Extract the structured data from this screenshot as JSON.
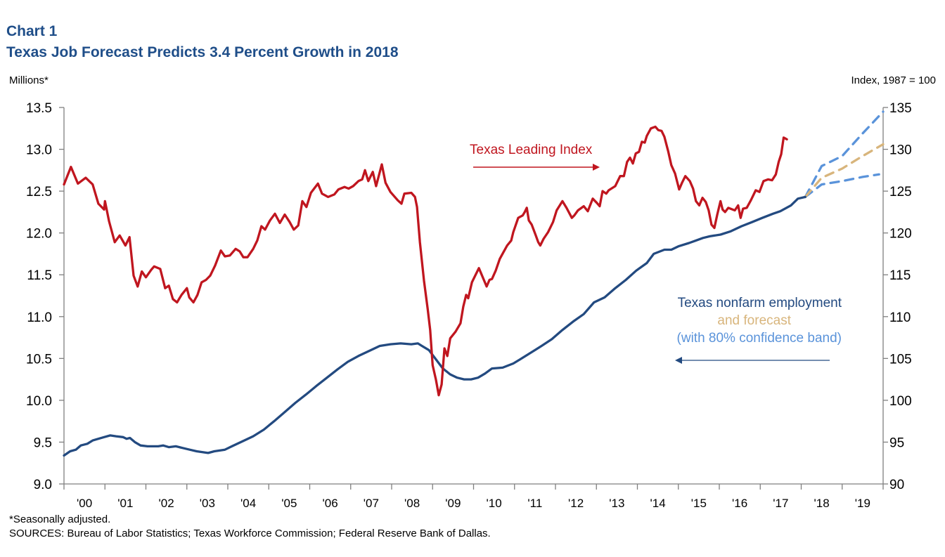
{
  "header": {
    "chart_number": "Chart 1",
    "title": "Texas Job Forecast Predicts 3.4 Percent Growth in 2018"
  },
  "footnotes": {
    "note": "*Seasonally adjusted.",
    "sources": "SOURCES: Bureau of Labor Statistics; Texas Workforce Commission; Federal Reserve Bank of Dallas."
  },
  "chart_data": {
    "type": "line",
    "title": "Texas Job Forecast Predicts 3.4 Percent Growth in 2018",
    "xlabel": "",
    "ylabel_left": "Millions*",
    "ylabel_right": "Index, 1987 = 100",
    "xlim": [
      2000,
      2020
    ],
    "ylim_left": [
      9.0,
      13.5
    ],
    "ylim_right": [
      90,
      135
    ],
    "yticks_left": [
      "9.0",
      "9.5",
      "10.0",
      "10.5",
      "11.0",
      "11.5",
      "12.0",
      "12.5",
      "13.0",
      "13.5"
    ],
    "yticks_right": [
      "90",
      "95",
      "100",
      "105",
      "110",
      "115",
      "120",
      "125",
      "130",
      "135"
    ],
    "xtick_labels": [
      "'00",
      "'01",
      "'02",
      "'03",
      "'04",
      "'05",
      "'06",
      "'07",
      "'08",
      "'09",
      "'10",
      "'11",
      "'12",
      "'13",
      "'14",
      "'15",
      "'16",
      "'17",
      "'18",
      "'19"
    ],
    "grid": false,
    "annotations": {
      "leading_index": "Texas Leading Index",
      "employment": "Texas nonfarm employment",
      "forecast": "and forecast",
      "band": "(with 80% confidence band)"
    },
    "colors": {
      "leading_index": "#C0161F",
      "employment": "#234A80",
      "forecast": "#D8B57C",
      "band": "#5A93DA",
      "title": "#1F4E89"
    },
    "series": [
      {
        "name": "Texas Leading Index",
        "axis": "right",
        "x": [
          2000.0,
          2000.17,
          2000.34,
          2000.53,
          2000.7,
          2000.84,
          2000.98,
          2001.0,
          2001.1,
          2001.24,
          2001.36,
          2001.5,
          2001.6,
          2001.7,
          2001.8,
          2001.9,
          2002.0,
          2002.13,
          2002.2,
          2002.35,
          2002.47,
          2002.56,
          2002.66,
          2002.76,
          2002.87,
          2003.0,
          2003.06,
          2003.16,
          2003.26,
          2003.36,
          2003.47,
          2003.57,
          2003.69,
          2003.83,
          2003.93,
          2004.05,
          2004.19,
          2004.29,
          2004.38,
          2004.48,
          2004.62,
          2004.72,
          2004.82,
          2004.91,
          2005.03,
          2005.15,
          2005.27,
          2005.39,
          2005.51,
          2005.61,
          2005.72,
          2005.82,
          2005.92,
          2006.03,
          2006.2,
          2006.3,
          2006.45,
          2006.6,
          2006.7,
          2006.85,
          2006.95,
          2007.06,
          2007.19,
          2007.28,
          2007.35,
          2007.43,
          2007.54,
          2007.62,
          2007.76,
          2007.85,
          2007.97,
          2008.15,
          2008.24,
          2008.31,
          2008.48,
          2008.57,
          2008.62,
          2008.69,
          2008.79,
          2008.88,
          2008.94,
          2009.0,
          2009.08,
          2009.15,
          2009.22,
          2009.29,
          2009.36,
          2009.43,
          2009.56,
          2009.68,
          2009.75,
          2009.82,
          2009.87,
          2009.96,
          2010.13,
          2010.25,
          2010.32,
          2010.39,
          2010.45,
          2010.54,
          2010.64,
          2010.73,
          2010.82,
          2010.92,
          2010.97,
          2011.09,
          2011.2,
          2011.25,
          2011.3,
          2011.35,
          2011.42,
          2011.52,
          2011.58,
          2011.63,
          2011.71,
          2011.82,
          2011.94,
          2012.03,
          2012.17,
          2012.27,
          2012.4,
          2012.46,
          2012.55,
          2012.69,
          2012.79,
          2012.91,
          2013.01,
          2013.08,
          2013.15,
          2013.24,
          2013.3,
          2013.46,
          2013.58,
          2013.67,
          2013.75,
          2013.82,
          2013.89,
          2013.96,
          2014.04,
          2014.11,
          2014.18,
          2014.23,
          2014.33,
          2014.44,
          2014.51,
          2014.59,
          2014.66,
          2014.75,
          2014.83,
          2014.92,
          2015.02,
          2015.09,
          2015.17,
          2015.28,
          2015.36,
          2015.43,
          2015.51,
          2015.59,
          2015.67,
          2015.74,
          2015.81,
          2015.88,
          2015.95,
          2016.03,
          2016.08,
          2016.14,
          2016.22,
          2016.38,
          2016.46,
          2016.52,
          2016.58,
          2016.67,
          2016.77,
          2016.89,
          2016.98,
          2017.08,
          2017.19,
          2017.29,
          2017.38,
          2017.45,
          2017.51,
          2017.57,
          2017.65
        ],
        "values": [
          125.8,
          127.9,
          125.9,
          126.6,
          125.8,
          123.5,
          122.8,
          123.8,
          121.4,
          118.9,
          119.7,
          118.5,
          119.5,
          114.9,
          113.6,
          115.4,
          114.7,
          115.6,
          116.0,
          115.7,
          113.4,
          113.7,
          112.1,
          111.7,
          112.6,
          113.4,
          112.3,
          111.7,
          112.6,
          114.1,
          114.4,
          114.9,
          116.1,
          117.9,
          117.2,
          117.3,
          118.1,
          117.8,
          117.1,
          117.1,
          118.1,
          119.1,
          120.8,
          120.4,
          121.5,
          122.3,
          121.2,
          122.2,
          121.3,
          120.4,
          120.9,
          123.8,
          123.1,
          124.8,
          125.9,
          124.7,
          124.3,
          124.6,
          125.2,
          125.5,
          125.3,
          125.6,
          126.2,
          126.4,
          127.5,
          126.2,
          127.3,
          125.6,
          128.2,
          126.0,
          124.9,
          123.9,
          123.5,
          124.7,
          124.8,
          124.3,
          123.1,
          118.9,
          114.3,
          110.9,
          108.4,
          104.2,
          102.5,
          100.6,
          101.9,
          106.2,
          105.3,
          107.4,
          108.2,
          109.2,
          111.2,
          112.6,
          112.2,
          114.1,
          115.8,
          114.4,
          113.6,
          114.4,
          114.5,
          115.5,
          116.9,
          117.7,
          118.5,
          119.1,
          120.1,
          121.8,
          122.1,
          122.5,
          123.0,
          121.5,
          121.0,
          119.7,
          118.9,
          118.5,
          119.3,
          120.1,
          121.3,
          122.7,
          123.8,
          123.0,
          121.8,
          122.1,
          122.7,
          123.2,
          122.6,
          124.1,
          123.6,
          123.2,
          125.0,
          124.7,
          125.1,
          125.6,
          126.8,
          126.8,
          128.5,
          129.0,
          128.3,
          129.5,
          129.7,
          130.9,
          130.8,
          131.6,
          132.5,
          132.7,
          132.3,
          132.2,
          131.5,
          129.8,
          128.1,
          127.1,
          125.2,
          126.0,
          126.8,
          126.2,
          125.3,
          123.8,
          123.3,
          124.2,
          123.7,
          122.7,
          121.0,
          120.6,
          122.2,
          123.8,
          122.8,
          122.5,
          123.0,
          122.7,
          123.3,
          121.8,
          122.9,
          123.0,
          123.9,
          125.1,
          124.9,
          126.2,
          126.4,
          126.3,
          127.0,
          128.5,
          129.4,
          131.4,
          131.2
        ]
      },
      {
        "name": "Texas nonfarm employment",
        "axis": "left",
        "x": [
          2000.0,
          2000.15,
          2000.29,
          2000.41,
          2000.57,
          2000.7,
          2000.84,
          2000.98,
          2001.13,
          2001.27,
          2001.44,
          2001.53,
          2001.61,
          2001.73,
          2001.87,
          2002.04,
          2002.3,
          2002.42,
          2002.56,
          2002.73,
          2002.9,
          2003.07,
          2003.24,
          2003.52,
          2003.67,
          2003.93,
          2004.1,
          2004.36,
          2004.62,
          2004.88,
          2005.13,
          2005.39,
          2005.65,
          2005.91,
          2006.16,
          2006.42,
          2006.68,
          2006.93,
          2007.19,
          2007.45,
          2007.71,
          2007.97,
          2008.22,
          2008.48,
          2008.64,
          2008.74,
          2008.91,
          2009.08,
          2009.25,
          2009.43,
          2009.6,
          2009.77,
          2009.94,
          2010.11,
          2010.28,
          2010.45,
          2010.71,
          2010.97,
          2011.14,
          2011.4,
          2011.66,
          2011.91,
          2012.17,
          2012.43,
          2012.69,
          2012.94,
          2013.2,
          2013.46,
          2013.72,
          2013.97,
          2014.23,
          2014.4,
          2014.66,
          2014.83,
          2015.0,
          2015.26,
          2015.43,
          2015.6,
          2015.77,
          2016.03,
          2016.28,
          2016.54,
          2016.8,
          2017.05,
          2017.31,
          2017.49,
          2017.75,
          2017.92,
          2018.1
        ],
        "values": [
          9.34,
          9.39,
          9.41,
          9.46,
          9.48,
          9.52,
          9.54,
          9.56,
          9.58,
          9.57,
          9.56,
          9.54,
          9.55,
          9.5,
          9.46,
          9.45,
          9.45,
          9.46,
          9.44,
          9.45,
          9.43,
          9.41,
          9.39,
          9.37,
          9.39,
          9.41,
          9.45,
          9.51,
          9.57,
          9.65,
          9.75,
          9.86,
          9.97,
          10.07,
          10.17,
          10.27,
          10.37,
          10.46,
          10.53,
          10.59,
          10.65,
          10.67,
          10.68,
          10.67,
          10.68,
          10.65,
          10.6,
          10.49,
          10.38,
          10.31,
          10.27,
          10.25,
          10.25,
          10.27,
          10.32,
          10.38,
          10.39,
          10.44,
          10.49,
          10.57,
          10.65,
          10.73,
          10.84,
          10.94,
          11.03,
          11.17,
          11.23,
          11.34,
          11.44,
          11.55,
          11.64,
          11.75,
          11.8,
          11.8,
          11.84,
          11.88,
          11.91,
          11.94,
          11.96,
          11.98,
          12.02,
          12.08,
          12.13,
          12.18,
          12.23,
          12.26,
          12.33,
          12.41,
          12.43
        ]
      },
      {
        "name": "and forecast",
        "axis": "left",
        "x": [
          2018.1,
          2018.5,
          2019.0,
          2019.5,
          2020.0
        ],
        "values": [
          12.43,
          12.66,
          12.77,
          12.92,
          13.06
        ]
      },
      {
        "name": "(with 80% confidence band) upper",
        "axis": "left",
        "x": [
          2018.1,
          2018.5,
          2019.0,
          2019.5,
          2020.0
        ],
        "values": [
          12.43,
          12.8,
          12.92,
          13.19,
          13.45
        ]
      },
      {
        "name": "(with 80% confidence band) lower",
        "axis": "left",
        "x": [
          2018.1,
          2018.5,
          2019.0,
          2019.5,
          2019.9
        ],
        "values": [
          12.43,
          12.58,
          12.62,
          12.67,
          12.7
        ]
      }
    ]
  }
}
